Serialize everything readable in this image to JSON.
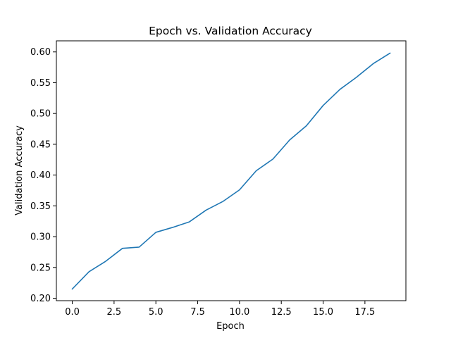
{
  "chart_data": {
    "type": "line",
    "title": "Epoch vs. Validation Accuracy",
    "xlabel": "Epoch",
    "ylabel": "Validation Accuracy",
    "xlim": [
      -0.95,
      19.95
    ],
    "ylim": [
      0.196,
      0.618
    ],
    "grid": false,
    "legend": "none",
    "x_ticks": [
      0.0,
      2.5,
      5.0,
      7.5,
      10.0,
      12.5,
      15.0,
      17.5
    ],
    "x_tick_labels": [
      "0.0",
      "2.5",
      "5.0",
      "7.5",
      "10.0",
      "12.5",
      "15.0",
      "17.5"
    ],
    "y_ticks": [
      0.2,
      0.25,
      0.3,
      0.35,
      0.4,
      0.45,
      0.5,
      0.55,
      0.6
    ],
    "y_tick_labels": [
      "0.20",
      "0.25",
      "0.30",
      "0.35",
      "0.40",
      "0.45",
      "0.50",
      "0.55",
      "0.60"
    ],
    "series": [
      {
        "color": "#1f77b4",
        "x": [
          0,
          1,
          2,
          3,
          4,
          5,
          6,
          7,
          8,
          9,
          10,
          11,
          12,
          13,
          14,
          15,
          16,
          17,
          18,
          19
        ],
        "y": [
          0.215,
          0.243,
          0.26,
          0.281,
          0.283,
          0.307,
          0.315,
          0.324,
          0.343,
          0.357,
          0.376,
          0.407,
          0.426,
          0.457,
          0.48,
          0.513,
          0.539,
          0.559,
          0.581,
          0.598
        ]
      }
    ]
  }
}
